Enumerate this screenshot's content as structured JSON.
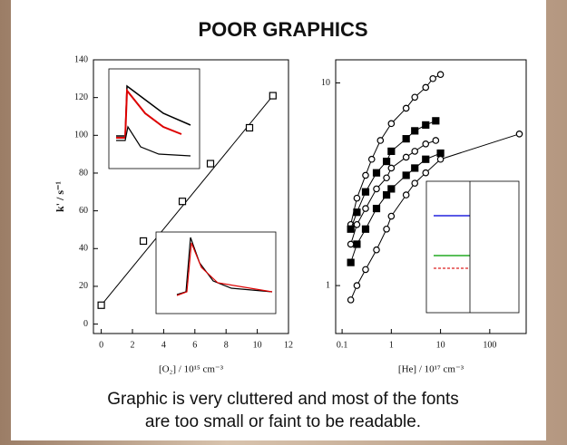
{
  "title": "POOR GRAPHICS",
  "caption": [
    "Graphic is very cluttered and most of the fonts",
    "are too small or faint to be readable."
  ],
  "chart_data": [
    {
      "type": "scatter",
      "x_label": "[O₂] / 10¹⁵ cm⁻³",
      "y_label": "k' / s⁻¹",
      "xlim": [
        -0.5,
        12
      ],
      "ylim": [
        -5,
        140
      ],
      "xticks": [
        0,
        2,
        4,
        6,
        8,
        10,
        12
      ],
      "yticks": [
        0,
        20,
        40,
        60,
        80,
        100,
        120,
        140
      ],
      "xscale": "linear",
      "yscale": "linear",
      "fit_line": true,
      "series": [
        {
          "marker": "square",
          "color": "#000000",
          "x": [
            0,
            2.7,
            5.2,
            7,
            9.5,
            11
          ],
          "values": [
            10,
            44,
            65,
            85,
            104,
            121
          ]
        }
      ]
    },
    {
      "type": "scatter",
      "x_label": "[He] / 10¹⁷ cm⁻³",
      "xlim": [
        0.074,
        550
      ],
      "ylim": [
        0.58,
        13
      ],
      "xticks": [
        0.1,
        1,
        10,
        100
      ],
      "yticks": [
        1,
        10
      ],
      "xscale": "log",
      "yscale": "log",
      "fit_line": false,
      "series": [
        {
          "marker": "circle",
          "color": "#000000",
          "x": [
            0.15,
            0.2,
            0.3,
            0.4,
            0.6,
            1,
            2,
            3,
            5,
            7,
            10
          ],
          "values": [
            2.0,
            2.7,
            3.5,
            4.2,
            5.2,
            6.3,
            7.5,
            8.5,
            9.5,
            10.5,
            11
          ]
        },
        {
          "marker": "filled-square",
          "color": "#000000",
          "x": [
            0.15,
            0.2,
            0.3,
            0.5,
            0.8,
            1,
            2,
            3,
            5,
            8
          ],
          "values": [
            1.9,
            2.3,
            2.9,
            3.6,
            4.1,
            4.6,
            5.3,
            5.8,
            6.2,
            6.5
          ]
        },
        {
          "marker": "circle",
          "color": "#000000",
          "x": [
            0.15,
            0.2,
            0.3,
            0.5,
            0.8,
            1,
            2,
            3,
            5,
            8
          ],
          "values": [
            1.6,
            2.0,
            2.4,
            3.0,
            3.4,
            3.8,
            4.3,
            4.6,
            5.0,
            5.2
          ]
        },
        {
          "marker": "filled-square",
          "color": "#000000",
          "x": [
            0.15,
            0.2,
            0.3,
            0.5,
            0.8,
            1,
            2,
            3,
            5,
            10
          ],
          "values": [
            1.3,
            1.6,
            1.9,
            2.4,
            2.8,
            3.0,
            3.5,
            3.8,
            4.2,
            4.5
          ]
        },
        {
          "marker": "circle",
          "color": "#000000",
          "x": [
            0.15,
            0.2,
            0.3,
            0.5,
            0.8,
            1,
            2,
            3,
            5,
            10,
            400
          ],
          "values": [
            0.85,
            1.0,
            1.2,
            1.5,
            1.9,
            2.2,
            2.8,
            3.2,
            3.6,
            4.2,
            5.6
          ]
        }
      ]
    }
  ]
}
